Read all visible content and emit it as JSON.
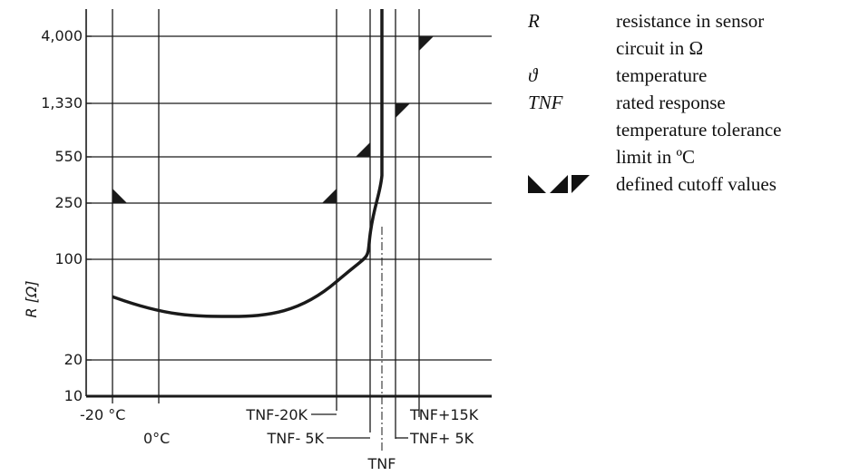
{
  "chart_data": {
    "type": "line",
    "y_scale": "log",
    "ylabel": "R [Ω]",
    "y_ticks": [
      {
        "value": 10,
        "label": "10"
      },
      {
        "value": 20,
        "label": "20"
      },
      {
        "value": 100,
        "label": "100"
      },
      {
        "value": 250,
        "label": "250"
      },
      {
        "value": 550,
        "label": "550"
      },
      {
        "value": 1330,
        "label": "1,330"
      },
      {
        "value": 4000,
        "label": "4,000"
      }
    ],
    "x_markers": [
      {
        "id": "m20c",
        "label": "-20 °C"
      },
      {
        "id": "m0c",
        "label": "0°C"
      },
      {
        "id": "tnf_m20",
        "label": "TNF-20K"
      },
      {
        "id": "tnf_m5",
        "label": "TNF-  5K"
      },
      {
        "id": "tnf",
        "label": "TNF"
      },
      {
        "id": "tnf_p5",
        "label": "TNF+ 5K"
      },
      {
        "id": "tnf_p15",
        "label": "TNF+15K"
      }
    ],
    "series": [
      {
        "points": [
          {
            "x": "-20 °C",
            "y": 55
          },
          {
            "x": "0°C",
            "y": 47
          },
          {
            "x": "TNF-20K",
            "y": 70
          },
          {
            "x": "TNF-  5K",
            "y": 150
          },
          {
            "x": "TNF",
            "y": 400
          },
          {
            "x": "TNF",
            "y": 10000
          }
        ]
      }
    ],
    "cutoff_markers": [
      {
        "x": "-20 °C",
        "y": 250,
        "shape": "lower-left-triangle"
      },
      {
        "x": "TNF-20K",
        "y": 250,
        "shape": "lower-right-triangle"
      },
      {
        "x": "TNF-  5K",
        "y": 550,
        "shape": "lower-right-triangle"
      },
      {
        "x": "TNF+ 5K",
        "y": 1330,
        "shape": "upper-left-triangle"
      },
      {
        "x": "TNF+15K",
        "y": 4000,
        "shape": "upper-left-triangle"
      }
    ]
  },
  "legend": [
    {
      "symbol": "R",
      "text": "resistance in sensor"
    },
    {
      "symbol": "",
      "text": "circuit in Ω"
    },
    {
      "symbol": "ϑ",
      "text": "temperature"
    },
    {
      "symbol": "TNF",
      "text": "rated response"
    },
    {
      "symbol": "",
      "text": "temperature tolerance"
    },
    {
      "symbol": "",
      "text": "limit in ºC"
    },
    {
      "symbol": "",
      "text": "defined cutoff values"
    }
  ],
  "colors": {
    "ink": "#1a1a1a"
  }
}
